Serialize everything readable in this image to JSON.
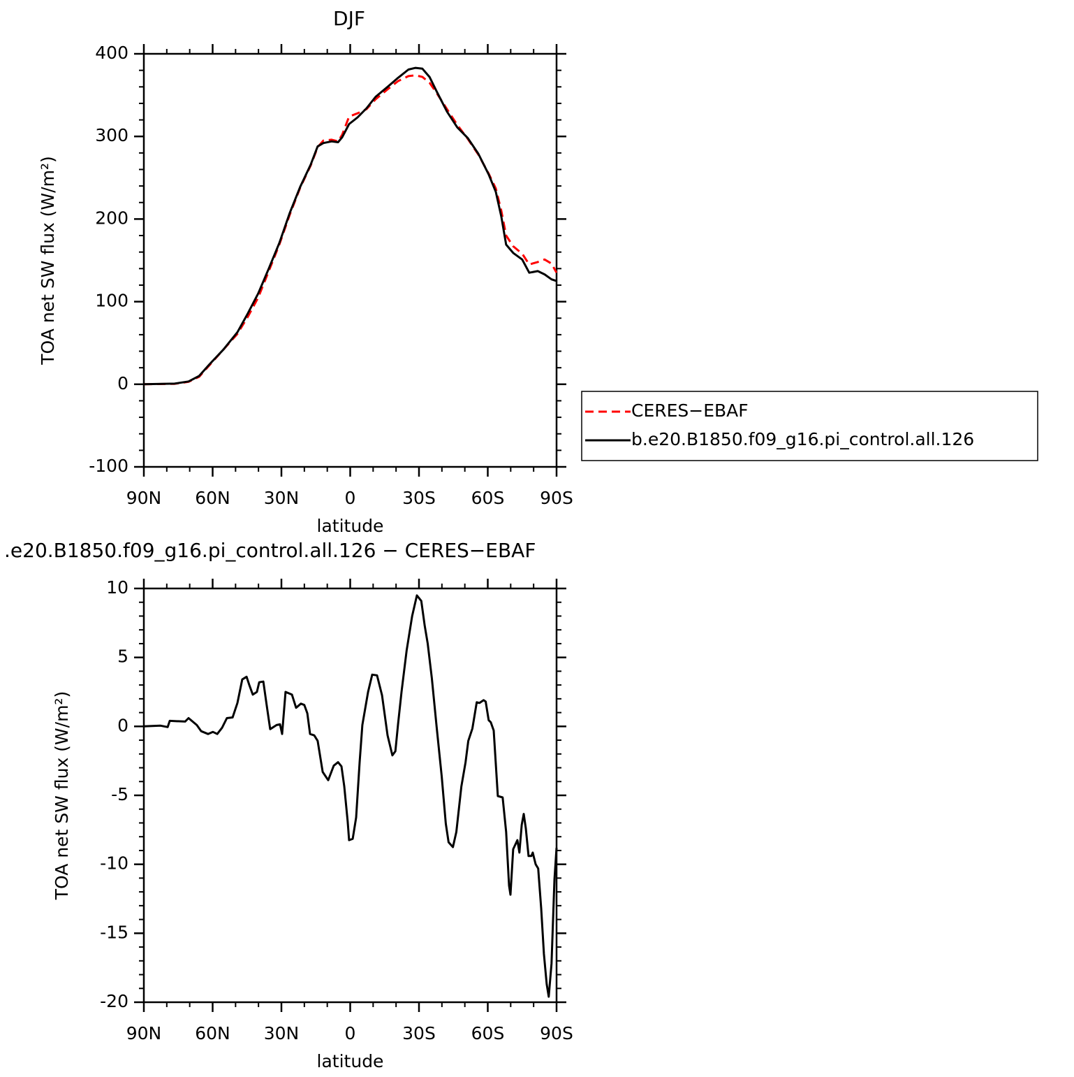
{
  "chart_data": [
    {
      "type": "line",
      "title": "DJF",
      "xlabel": "latitude",
      "ylabel": "TOA net SW flux (W/m²)",
      "xlim": [
        90,
        -90
      ],
      "xticks": [
        {
          "value": 90,
          "label": "90N"
        },
        {
          "value": 60,
          "label": "60N"
        },
        {
          "value": 30,
          "label": "30N"
        },
        0,
        {
          "value": -30,
          "label": "30S"
        },
        {
          "value": -60,
          "label": "60S"
        },
        {
          "value": -90,
          "label": "90S"
        }
      ],
      "ylim": [
        -100,
        400
      ],
      "yticks": [
        -100,
        0,
        100,
        200,
        300,
        400
      ],
      "legend": "right",
      "x": [
        90,
        76.6,
        70.5,
        65.9,
        61.4,
        55.3,
        49.2,
        44.6,
        40.1,
        35.5,
        30.9,
        26.4,
        21.8,
        17.2,
        14.2,
        11.7,
        8.1,
        5.3,
        3.5,
        0.5,
        -3.2,
        -7.1,
        -11.1,
        -16.3,
        -20.9,
        -25.4,
        -28.5,
        -31.5,
        -34.6,
        -37.6,
        -42.2,
        -46.7,
        -51.3,
        -55.9,
        -60.4,
        -63.5,
        -65.9,
        -68,
        -71.1,
        -75,
        -78.1,
        -81.8,
        -84.8,
        -87.8,
        -90
      ],
      "series": [
        {
          "name": "CERES−EBAF",
          "color": "#ff0000",
          "style": "dashed",
          "values": [
            0,
            0.5,
            3,
            9,
            23,
            42,
            61,
            82,
            105,
            137,
            169,
            205,
            238,
            265,
            287,
            295,
            296,
            294,
            302,
            324,
            328,
            333,
            345,
            357,
            367,
            373,
            374,
            372,
            365,
            353,
            333,
            314,
            297,
            278,
            255,
            237,
            210,
            180,
            167,
            158,
            145,
            148,
            151,
            146,
            135
          ]
        },
        {
          "name": "b.e20.B1850.f09_g16.pi_control.all.126",
          "color": "#000000",
          "style": "solid",
          "values": [
            0,
            0.8,
            3.4,
            10,
            24,
            42,
            63,
            86,
            110,
            140,
            171,
            207,
            239,
            266,
            288,
            292,
            294,
            293,
            299,
            315,
            323,
            334,
            348,
            360,
            371,
            381,
            383,
            382,
            372,
            355,
            330,
            311,
            298,
            279,
            254,
            233,
            203,
            169,
            159,
            151,
            135,
            137,
            133,
            127,
            125
          ]
        }
      ]
    },
    {
      "type": "line",
      "title": ".e20.B1850.f09_g16.pi_control.all.126 − CERES−EBAF",
      "xlabel": "latitude",
      "ylabel": "TOA net SW flux (W/m²)",
      "xlim": [
        90,
        -90
      ],
      "xticks": [
        {
          "value": 90,
          "label": "90N"
        },
        {
          "value": 60,
          "label": "60N"
        },
        {
          "value": 30,
          "label": "30N"
        },
        0,
        {
          "value": -30,
          "label": "30S"
        },
        {
          "value": -60,
          "label": "60S"
        },
        {
          "value": -90,
          "label": "90S"
        }
      ],
      "ylim": [
        -20,
        10
      ],
      "yticks": [
        -20,
        -15,
        -10,
        -5,
        0,
        5,
        10
      ],
      "color": "#000000",
      "x": [
        90,
        82.7,
        79.6,
        78.7,
        72,
        70.5,
        66.9,
        65,
        62,
        59.9,
        58,
        55.9,
        53.8,
        51.3,
        49.2,
        47.1,
        45.2,
        44,
        42.5,
        40.7,
        39.7,
        37.9,
        36.4,
        34.9,
        32.1,
        30.6,
        29.7,
        28.2,
        25.4,
        23.6,
        21.5,
        20,
        18.7,
        17.5,
        15.7,
        14.2,
        12,
        9.6,
        7.2,
        5.3,
        3.8,
        2.6,
        1.1,
        0.5,
        -1.1,
        -2.6,
        -4.1,
        -5.3,
        -7.8,
        -9.6,
        -11.7,
        -13.9,
        -16.3,
        -18.4,
        -19.7,
        -20.9,
        -22.4,
        -24.6,
        -27,
        -29.1,
        -31,
        -32.5,
        -33.8,
        -35.6,
        -37.7,
        -39.9,
        -41.7,
        -42.9,
        -44.8,
        -46.3,
        -48.5,
        -50.3,
        -51.5,
        -53.3,
        -55.2,
        -56.4,
        -58.2,
        -59.1,
        -60.4,
        -61.3,
        -62.6,
        -64.4,
        -66.5,
        -68,
        -69.3,
        -69.9,
        -71.1,
        -72.9,
        -73.8,
        -74.8,
        -75.7,
        -76.6,
        -77.8,
        -79,
        -79.6,
        -80.9,
        -82,
        -83.3,
        -84.5,
        -85.7,
        -86.6,
        -87.8,
        -89.1,
        -90
      ],
      "values": [
        0,
        0.05,
        -0.05,
        0.4,
        0.35,
        0.6,
        0.1,
        -0.35,
        -0.55,
        -0.4,
        -0.55,
        -0.1,
        0.6,
        0.65,
        1.7,
        3.4,
        3.6,
        3.0,
        2.3,
        2.5,
        3.2,
        3.25,
        1.5,
        -0.2,
        0.1,
        0.15,
        -0.55,
        2.5,
        2.3,
        1.35,
        1.65,
        1.55,
        0.95,
        -0.55,
        -0.65,
        -1.05,
        -3.3,
        -3.9,
        -2.85,
        -2.6,
        -2.9,
        -4.35,
        -6.9,
        -8.25,
        -8.15,
        -6.6,
        -2.6,
        0.1,
        2.5,
        3.75,
        3.7,
        2.25,
        -0.65,
        -2.1,
        -1.8,
        0.2,
        2.5,
        5.5,
        8.0,
        9.5,
        9.1,
        7.3,
        6.0,
        3.5,
        -0.05,
        -3.6,
        -7.05,
        -8.4,
        -8.75,
        -7.65,
        -4.35,
        -2.6,
        -1.05,
        -0.15,
        1.75,
        1.7,
        1.9,
        1.8,
        0.45,
        0.3,
        -0.3,
        -5.05,
        -5.15,
        -7.65,
        -11.55,
        -12.2,
        -8.9,
        -8.25,
        -9.15,
        -7.15,
        -6.35,
        -7.4,
        -9.4,
        -9.4,
        -9.15,
        -10,
        -10.3,
        -13.2,
        -16.5,
        -18.7,
        -19.6,
        -17.2,
        -11.1,
        -8.8
      ]
    }
  ]
}
